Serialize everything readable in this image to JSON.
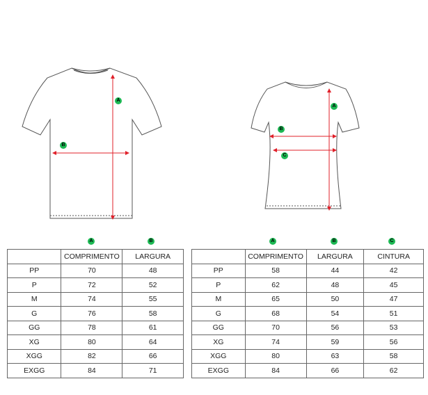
{
  "badge_color": "#1db954",
  "arrow_color": "#e0202a",
  "mens_shirt": {
    "labels": [
      "A",
      "B"
    ]
  },
  "womens_shirt": {
    "labels": [
      "A",
      "B",
      "C"
    ]
  },
  "mens_table": {
    "header_badges": [
      "A",
      "B"
    ],
    "columns": [
      "",
      "COMPRIMENTO",
      "LARGURA"
    ],
    "rows": [
      [
        "PP",
        "70",
        "48"
      ],
      [
        "P",
        "72",
        "52"
      ],
      [
        "M",
        "74",
        "55"
      ],
      [
        "G",
        "76",
        "58"
      ],
      [
        "GG",
        "78",
        "61"
      ],
      [
        "XG",
        "80",
        "64"
      ],
      [
        "XGG",
        "82",
        "66"
      ],
      [
        "EXGG",
        "84",
        "71"
      ]
    ]
  },
  "womens_table": {
    "header_badges": [
      "A",
      "B",
      "C"
    ],
    "columns": [
      "",
      "COMPRIMENTO",
      "LARGURA",
      "CINTURA"
    ],
    "rows": [
      [
        "PP",
        "58",
        "44",
        "42"
      ],
      [
        "P",
        "62",
        "48",
        "45"
      ],
      [
        "M",
        "65",
        "50",
        "47"
      ],
      [
        "G",
        "68",
        "54",
        "51"
      ],
      [
        "GG",
        "70",
        "56",
        "53"
      ],
      [
        "XG",
        "74",
        "59",
        "56"
      ],
      [
        "XGG",
        "80",
        "63",
        "58"
      ],
      [
        "EXGG",
        "84",
        "66",
        "62"
      ]
    ]
  }
}
